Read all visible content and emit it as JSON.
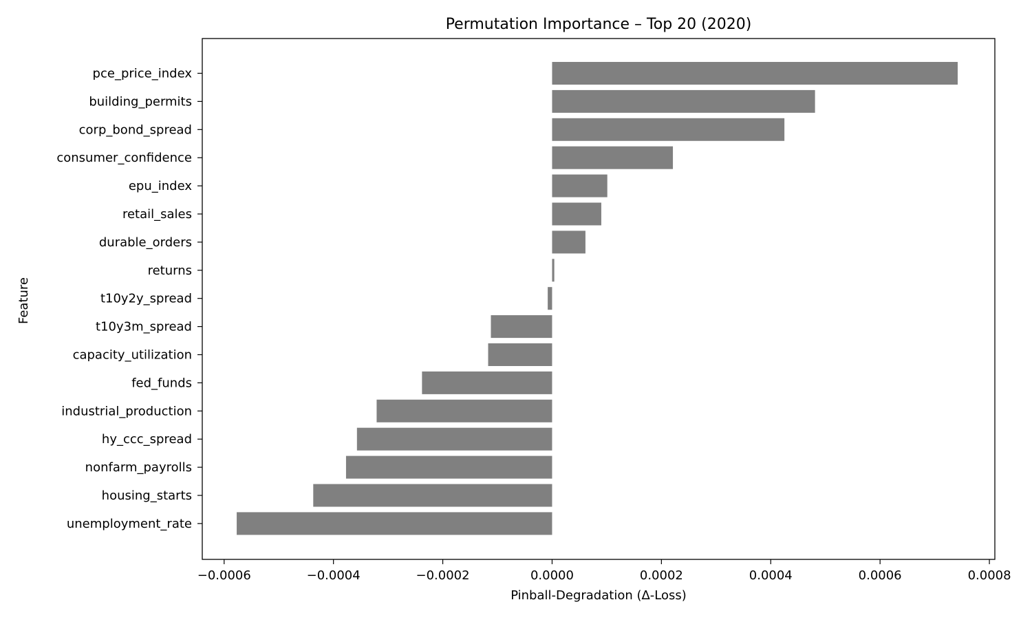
{
  "chart_data": {
    "type": "bar",
    "orientation": "horizontal",
    "title": "Permutation Importance – Top 20 (2020)",
    "xlabel": "Pinball-Degradation (Δ-Loss)",
    "ylabel": "Feature",
    "xlim": [
      -0.00064,
      0.00081
    ],
    "xticks": [
      -0.0006,
      -0.0004,
      -0.0002,
      0.0,
      0.0002,
      0.0004,
      0.0006,
      0.0008
    ],
    "xtick_labels": [
      "−0.0006",
      "−0.0004",
      "−0.0002",
      "0.0000",
      "0.0002",
      "0.0004",
      "0.0006",
      "0.0008"
    ],
    "categories": [
      "pce_price_index",
      "building_permits",
      "corp_bond_spread",
      "consumer_confidence",
      "epu_index",
      "retail_sales",
      "durable_orders",
      "returns",
      "t10y2y_spread",
      "t10y3m_spread",
      "capacity_utilization",
      "fed_funds",
      "industrial_production",
      "hy_ccc_spread",
      "nonfarm_payrolls",
      "housing_starts",
      "unemployment_rate"
    ],
    "values": [
      0.000742,
      0.000481,
      0.000425,
      0.000221,
      0.000101,
      9e-05,
      6.1e-05,
      4e-06,
      -8e-06,
      -0.000112,
      -0.000117,
      -0.000238,
      -0.000321,
      -0.000357,
      -0.000377,
      -0.000437,
      -0.000577
    ],
    "bar_color": "#808080",
    "grid": false,
    "legend": "none"
  }
}
